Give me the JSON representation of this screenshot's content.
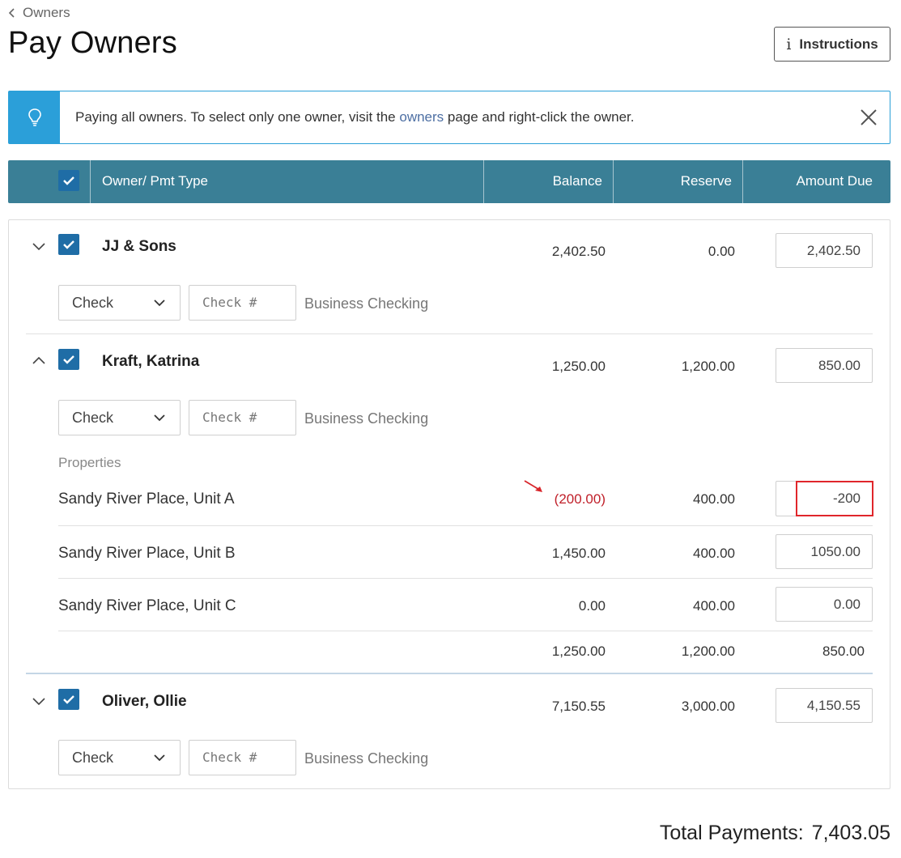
{
  "breadcrumb": {
    "label": "Owners"
  },
  "page": {
    "title": "Pay Owners",
    "instructions_label": "Instructions"
  },
  "banner": {
    "msg_before": "Paying all owners. To select only one owner, visit the ",
    "msg_link": "owners",
    "msg_after": " page and right-click the owner."
  },
  "table_header": {
    "owner_col": "Owner/ Pmt Type",
    "balance_col": "Balance",
    "reserve_col": "Reserve",
    "amount_col": "Amount Due"
  },
  "owners": [
    {
      "name": "JJ & Sons",
      "balance": "2,402.50",
      "reserve": "0.00",
      "amount_due": "2,402.50",
      "pmt_type": "Check",
      "check_placeholder": "Check #",
      "account": "Business Checking"
    },
    {
      "name": "Kraft, Katrina",
      "balance": "1,250.00",
      "reserve": "1,200.00",
      "amount_due": "850.00",
      "pmt_type": "Check",
      "check_placeholder": "Check #",
      "account": "Business Checking",
      "properties_label": "Properties",
      "properties": [
        {
          "name": "Sandy River Place, Unit A",
          "balance": "(200.00)",
          "reserve": "400.00",
          "amount_due": "-200"
        },
        {
          "name": "Sandy River Place, Unit B",
          "balance": "1,450.00",
          "reserve": "400.00",
          "amount_due": "1050.00"
        },
        {
          "name": "Sandy River Place, Unit C",
          "balance": "0.00",
          "reserve": "400.00",
          "amount_due": "0.00"
        }
      ],
      "totals": {
        "balance": "1,250.00",
        "reserve": "1,200.00",
        "amount_due": "850.00"
      }
    },
    {
      "name": "Oliver, Ollie",
      "balance": "7,150.55",
      "reserve": "3,000.00",
      "amount_due": "4,150.55",
      "pmt_type": "Check",
      "check_placeholder": "Check #",
      "account": "Business Checking"
    }
  ],
  "total": {
    "label": "Total Payments:",
    "value": "7,403.05"
  },
  "colors": {
    "header_bg": "#3a7f96",
    "checkbox": "#1f6da6",
    "banner_accent": "#2b9fd9",
    "negative": "#c0202a"
  }
}
